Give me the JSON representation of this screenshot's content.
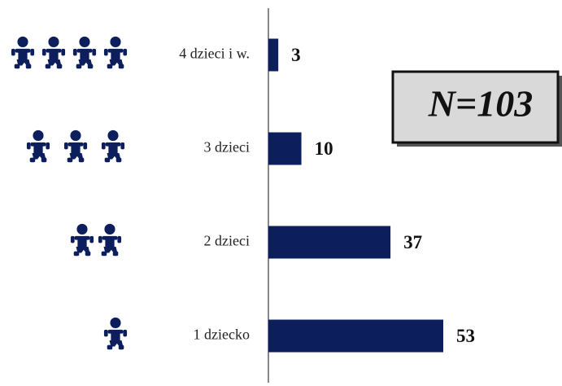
{
  "chart_data": {
    "type": "bar",
    "orientation": "horizontal",
    "categories": [
      "4 dzieci i w.",
      "3 dzieci",
      "2 dzieci",
      "1 dziecko"
    ],
    "values": [
      3,
      10,
      37,
      53
    ],
    "color": "#0c1f5c",
    "annotation": "N=103"
  }
}
